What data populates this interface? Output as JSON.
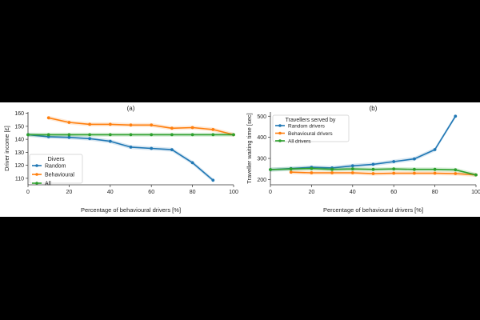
{
  "chart_data": [
    {
      "type": "line",
      "title": "(a)",
      "xlabel": "Percentage of behavioural drivers [%]",
      "ylabel": "Driver income [£]",
      "xlim": [
        0,
        100
      ],
      "ylim": [
        105,
        161
      ],
      "xticks": [
        0,
        20,
        40,
        60,
        80,
        100
      ],
      "yticks": [
        110,
        120,
        130,
        140,
        150,
        160
      ],
      "legend": {
        "title": "Divers",
        "position": "lower-left"
      },
      "series": [
        {
          "name": "Random",
          "color": "#1f77b4",
          "x": [
            0,
            10,
            20,
            30,
            40,
            50,
            60,
            70,
            80,
            90
          ],
          "y": [
            143.5,
            142,
            141.5,
            140.5,
            138.5,
            134,
            133,
            132,
            122,
            108.5
          ]
        },
        {
          "name": "Behavioural",
          "color": "#ff7f0e",
          "x": [
            10,
            20,
            30,
            40,
            50,
            60,
            70,
            80,
            90,
            100
          ],
          "y": [
            156.5,
            153,
            151.5,
            151.5,
            151,
            151,
            148.5,
            149,
            147.5,
            143.5
          ]
        },
        {
          "name": "All",
          "color": "#2ca02c",
          "x": [
            0,
            10,
            20,
            30,
            40,
            50,
            60,
            70,
            80,
            90,
            100
          ],
          "y": [
            143.5,
            143.5,
            143.5,
            143.5,
            143.5,
            143.5,
            143.5,
            143.5,
            143.5,
            143.5,
            143.5
          ]
        }
      ]
    },
    {
      "type": "line",
      "title": "(b)",
      "xlabel": "Percentage of behavioural drivers [%]",
      "ylabel": "Traveller waiting time [sec]",
      "xlim": [
        0,
        100
      ],
      "ylim": [
        175,
        520
      ],
      "xticks": [
        0,
        20,
        40,
        60,
        80,
        100
      ],
      "yticks": [
        200,
        300,
        400,
        500
      ],
      "legend": {
        "title": "Travellers served by",
        "position": "top-left"
      },
      "series": [
        {
          "name": "Random drivers",
          "color": "#1f77b4",
          "x": [
            0,
            10,
            20,
            30,
            40,
            50,
            60,
            70,
            80,
            90
          ],
          "y": [
            247,
            252,
            258,
            255,
            265,
            272,
            285,
            298,
            342,
            500
          ]
        },
        {
          "name": "Behavioural drivers",
          "color": "#ff7f0e",
          "x": [
            10,
            20,
            30,
            40,
            50,
            60,
            70,
            80,
            90,
            100
          ],
          "y": [
            235,
            232,
            232,
            232,
            228,
            230,
            230,
            230,
            228,
            222
          ]
        },
        {
          "name": "All drivers",
          "color": "#2ca02c",
          "x": [
            0,
            10,
            20,
            30,
            40,
            50,
            60,
            70,
            80,
            90,
            100
          ],
          "y": [
            247,
            250,
            252,
            248,
            250,
            248,
            250,
            248,
            248,
            246,
            222
          ]
        }
      ]
    }
  ]
}
